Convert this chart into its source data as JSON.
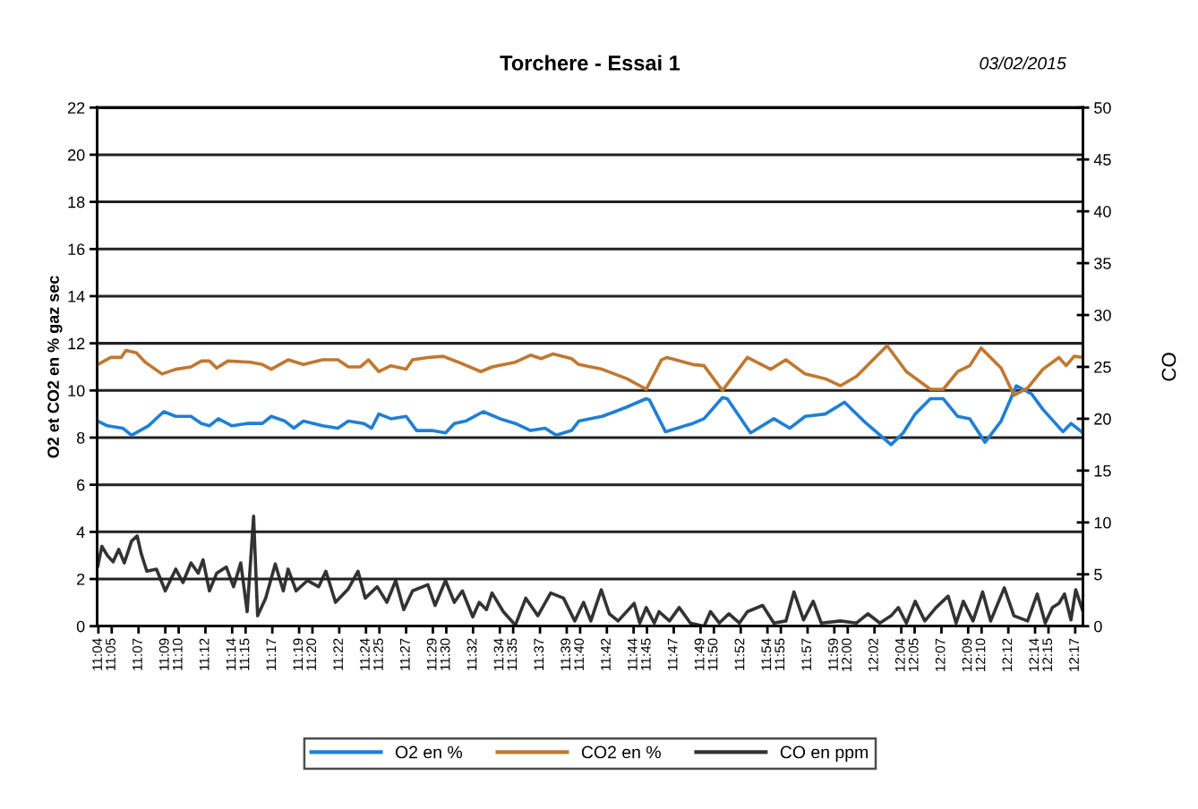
{
  "chart_data": {
    "type": "line",
    "title": "Torchere - Essai 1",
    "annotations": [
      "03/02/2015"
    ],
    "ylabel": "O2 et CO2 en % gaz sec",
    "y2label": "CO",
    "xlim": [
      11.065,
      12.293
    ],
    "ylim": [
      0,
      22
    ],
    "yticks": [
      0,
      2,
      4,
      6,
      8,
      10,
      12,
      14,
      16,
      18,
      20,
      22
    ],
    "y2lim": [
      0,
      50
    ],
    "y2ticks": [
      0,
      5,
      10,
      15,
      20,
      25,
      30,
      35,
      40,
      45,
      50
    ],
    "xticks": [
      {
        "value": 11.0667,
        "label": "11:04"
      },
      {
        "value": 11.0833,
        "label": "11:05"
      },
      {
        "value": 11.1167,
        "label": "11:07"
      },
      {
        "value": 11.15,
        "label": "11:09"
      },
      {
        "value": 11.1667,
        "label": "11:10"
      },
      {
        "value": 11.2,
        "label": "11:12"
      },
      {
        "value": 11.2333,
        "label": "11:14"
      },
      {
        "value": 11.25,
        "label": "11:15"
      },
      {
        "value": 11.2833,
        "label": "11:17"
      },
      {
        "value": 11.3167,
        "label": "11:19"
      },
      {
        "value": 11.3333,
        "label": "11:20"
      },
      {
        "value": 11.3667,
        "label": "11:22"
      },
      {
        "value": 11.4,
        "label": "11:24"
      },
      {
        "value": 11.4167,
        "label": "11:25"
      },
      {
        "value": 11.45,
        "label": "11:27"
      },
      {
        "value": 11.4833,
        "label": "11:29"
      },
      {
        "value": 11.5,
        "label": "11:30"
      },
      {
        "value": 11.5333,
        "label": "11:32"
      },
      {
        "value": 11.5667,
        "label": "11:34"
      },
      {
        "value": 11.5833,
        "label": "11:35"
      },
      {
        "value": 11.6167,
        "label": "11:37"
      },
      {
        "value": 11.65,
        "label": "11:39"
      },
      {
        "value": 11.6667,
        "label": "11:40"
      },
      {
        "value": 11.7,
        "label": "11:42"
      },
      {
        "value": 11.7333,
        "label": "11:44"
      },
      {
        "value": 11.75,
        "label": "11:45"
      },
      {
        "value": 11.7833,
        "label": "11:47"
      },
      {
        "value": 11.8167,
        "label": "11:49"
      },
      {
        "value": 11.8333,
        "label": "11:50"
      },
      {
        "value": 11.8667,
        "label": "11:52"
      },
      {
        "value": 11.9,
        "label": "11:54"
      },
      {
        "value": 11.9167,
        "label": "11:55"
      },
      {
        "value": 11.95,
        "label": "11:57"
      },
      {
        "value": 11.9833,
        "label": "11:59"
      },
      {
        "value": 12.0,
        "label": "12:00"
      },
      {
        "value": 12.0333,
        "label": "12:02"
      },
      {
        "value": 12.0667,
        "label": "12:04"
      },
      {
        "value": 12.0833,
        "label": "12:05"
      },
      {
        "value": 12.1167,
        "label": "12:07"
      },
      {
        "value": 12.15,
        "label": "12:09"
      },
      {
        "value": 12.1667,
        "label": "12:10"
      },
      {
        "value": 12.2,
        "label": "12:12"
      },
      {
        "value": 12.2333,
        "label": "12:14"
      },
      {
        "value": 12.25,
        "label": "12:15"
      },
      {
        "value": 12.2833,
        "label": "12:17"
      }
    ],
    "grid": "y",
    "legend": "bottom",
    "line_style": "solid",
    "series": [
      {
        "name": "O2 en %",
        "color": "#1f7fd6",
        "x": [
          11.066,
          11.078,
          11.097,
          11.108,
          11.129,
          11.148,
          11.163,
          11.182,
          11.195,
          11.205,
          11.216,
          11.233,
          11.252,
          11.271,
          11.282,
          11.299,
          11.31,
          11.322,
          11.346,
          11.365,
          11.378,
          11.397,
          11.407,
          11.416,
          11.431,
          11.45,
          11.463,
          11.482,
          11.499,
          11.51,
          11.524,
          11.546,
          11.567,
          11.586,
          11.605,
          11.623,
          11.637,
          11.656,
          11.665,
          11.694,
          11.71,
          11.725,
          11.749,
          11.753,
          11.773,
          11.807,
          11.821,
          11.844,
          11.85,
          11.879,
          11.908,
          11.928,
          11.947,
          11.972,
          11.996,
          12.02,
          12.054,
          12.069,
          12.084,
          12.103,
          12.119,
          12.137,
          12.152,
          12.171,
          12.191,
          12.21,
          12.229,
          12.243,
          12.268,
          12.278,
          12.293
        ],
        "values": [
          8.7,
          8.5,
          8.4,
          8.1,
          8.5,
          9.1,
          8.9,
          8.9,
          8.6,
          8.5,
          8.8,
          8.5,
          8.6,
          8.6,
          8.9,
          8.7,
          8.4,
          8.7,
          8.5,
          8.4,
          8.7,
          8.6,
          8.4,
          9.0,
          8.8,
          8.9,
          8.3,
          8.3,
          8.2,
          8.6,
          8.7,
          9.1,
          8.8,
          8.6,
          8.3,
          8.4,
          8.1,
          8.3,
          8.7,
          8.9,
          9.1,
          9.3,
          9.65,
          9.6,
          8.25,
          8.6,
          8.8,
          9.7,
          9.65,
          8.2,
          8.8,
          8.4,
          8.9,
          9.0,
          9.5,
          8.7,
          7.7,
          8.2,
          9.0,
          9.65,
          9.65,
          8.9,
          8.8,
          7.8,
          8.7,
          10.2,
          9.85,
          9.2,
          8.25,
          8.6,
          8.2
        ]
      },
      {
        "name": "CO2 en %",
        "color": "#c07830",
        "x": [
          11.066,
          11.082,
          11.095,
          11.101,
          11.114,
          11.125,
          11.146,
          11.163,
          11.182,
          11.195,
          11.205,
          11.214,
          11.228,
          11.256,
          11.271,
          11.282,
          11.303,
          11.322,
          11.346,
          11.365,
          11.378,
          11.393,
          11.403,
          11.416,
          11.431,
          11.45,
          11.458,
          11.477,
          11.496,
          11.515,
          11.543,
          11.557,
          11.586,
          11.605,
          11.618,
          11.633,
          11.656,
          11.665,
          11.694,
          11.725,
          11.749,
          11.768,
          11.775,
          11.807,
          11.821,
          11.844,
          11.875,
          11.904,
          11.923,
          11.947,
          11.972,
          11.991,
          12.011,
          12.049,
          12.073,
          12.103,
          12.119,
          12.137,
          12.152,
          12.166,
          12.191,
          12.207,
          12.224,
          12.243,
          12.263,
          12.272,
          12.282,
          12.293
        ],
        "values": [
          11.1,
          11.4,
          11.4,
          11.7,
          11.6,
          11.2,
          10.7,
          10.9,
          11.0,
          11.25,
          11.25,
          10.95,
          11.25,
          11.2,
          11.1,
          10.9,
          11.3,
          11.1,
          11.3,
          11.3,
          11.0,
          11.0,
          11.3,
          10.8,
          11.05,
          10.9,
          11.3,
          11.4,
          11.45,
          11.2,
          10.8,
          11.0,
          11.2,
          11.5,
          11.35,
          11.55,
          11.35,
          11.1,
          10.9,
          10.5,
          10.05,
          11.3,
          11.4,
          11.1,
          11.05,
          10.0,
          11.4,
          10.9,
          11.3,
          10.7,
          10.5,
          10.2,
          10.6,
          11.9,
          10.8,
          10.05,
          10.05,
          10.8,
          11.05,
          11.8,
          10.95,
          9.8,
          10.1,
          10.9,
          11.4,
          11.05,
          11.45,
          11.4
        ]
      },
      {
        "name": "CO en ppm",
        "color": "#333333",
        "axis": "y2",
        "x": [
          11.066,
          11.071,
          11.078,
          11.085,
          11.092,
          11.099,
          11.108,
          11.115,
          11.12,
          11.127,
          11.139,
          11.15,
          11.163,
          11.172,
          11.182,
          11.191,
          11.197,
          11.205,
          11.214,
          11.226,
          11.235,
          11.244,
          11.252,
          11.26,
          11.265,
          11.275,
          11.287,
          11.297,
          11.303,
          11.313,
          11.327,
          11.341,
          11.35,
          11.362,
          11.378,
          11.39,
          11.399,
          11.414,
          11.426,
          11.437,
          11.447,
          11.458,
          11.477,
          11.486,
          11.499,
          11.51,
          11.52,
          11.533,
          11.541,
          11.55,
          11.557,
          11.571,
          11.586,
          11.599,
          11.614,
          11.63,
          11.646,
          11.66,
          11.671,
          11.68,
          11.693,
          11.703,
          11.714,
          11.734,
          11.741,
          11.749,
          11.759,
          11.765,
          11.778,
          11.79,
          11.804,
          11.821,
          11.829,
          11.84,
          11.852,
          11.865,
          11.875,
          11.894,
          11.908,
          11.923,
          11.933,
          11.945,
          11.957,
          11.967,
          11.991,
          12.011,
          12.025,
          12.04,
          12.054,
          12.063,
          12.073,
          12.084,
          12.096,
          12.11,
          12.125,
          12.135,
          12.144,
          12.156,
          12.168,
          12.178,
          12.195,
          12.207,
          12.224,
          12.236,
          12.246,
          12.255,
          12.263,
          12.27,
          12.278,
          12.284,
          12.293
        ],
        "values": [
          5.8,
          7.7,
          6.8,
          6.2,
          7.4,
          6.1,
          8.2,
          8.7,
          7.0,
          5.3,
          5.5,
          3.4,
          5.5,
          4.2,
          6.1,
          5.1,
          6.4,
          3.4,
          5.1,
          5.7,
          3.8,
          6.1,
          1.4,
          10.6,
          1.0,
          2.7,
          6.0,
          3.4,
          5.5,
          3.4,
          4.4,
          3.8,
          5.3,
          2.3,
          3.6,
          5.3,
          2.7,
          3.8,
          2.3,
          4.4,
          1.6,
          3.4,
          4.0,
          2.0,
          4.4,
          2.3,
          3.4,
          0.9,
          2.3,
          1.6,
          3.2,
          1.4,
          0.1,
          2.7,
          1.0,
          3.2,
          2.7,
          0.5,
          2.3,
          0.5,
          3.5,
          1.2,
          0.5,
          2.2,
          0.3,
          1.8,
          0.3,
          1.4,
          0.5,
          1.8,
          0.3,
          0.0,
          1.4,
          0.3,
          1.2,
          0.3,
          1.4,
          2.0,
          0.3,
          0.5,
          3.3,
          0.6,
          2.4,
          0.3,
          0.5,
          0.3,
          1.2,
          0.3,
          1.0,
          1.8,
          0.3,
          2.4,
          0.5,
          1.8,
          2.9,
          0.3,
          2.4,
          0.5,
          3.3,
          0.5,
          3.7,
          1.0,
          0.5,
          3.1,
          0.3,
          1.8,
          2.2,
          3.1,
          0.6,
          3.5,
          1.4
        ]
      }
    ]
  }
}
